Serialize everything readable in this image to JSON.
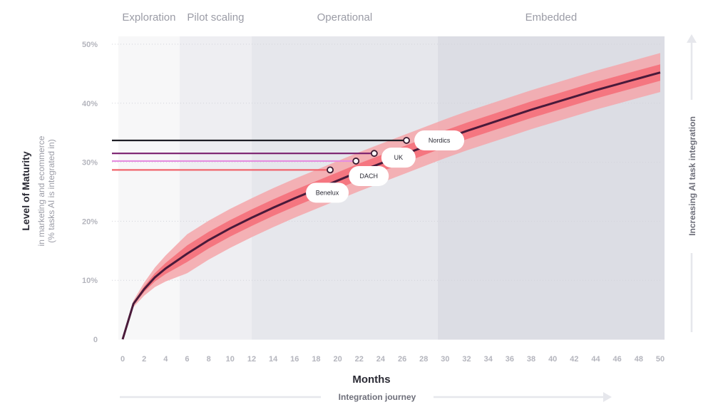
{
  "chart_data": {
    "type": "line",
    "xlabel": "Months",
    "ylabel": "Level of Maturity",
    "ylabel_sub": [
      "in marketing and ecommerce",
      "(% tasks AI is integrated in)"
    ],
    "right_label": "Increasing AI task integration",
    "bottom_label": "Integration journey",
    "xlim": [
      0,
      50
    ],
    "ylim": [
      0,
      50
    ],
    "x_ticks": [
      "0",
      "2",
      "4",
      "6",
      "8",
      "10",
      "12",
      "14",
      "16",
      "18",
      "20",
      "22",
      "24",
      "26",
      "28",
      "30",
      "32",
      "34",
      "36",
      "38",
      "40",
      "42",
      "44",
      "46",
      "48",
      "50"
    ],
    "y_ticks": [
      {
        "value": 0,
        "label": "0"
      },
      {
        "value": 10,
        "label": "10%"
      },
      {
        "value": 20,
        "label": "20%"
      },
      {
        "value": 30,
        "label": "30%"
      },
      {
        "value": 40,
        "label": "40%"
      },
      {
        "value": 50,
        "label": "50%"
      }
    ],
    "phases": [
      {
        "name": "Exploration",
        "start": -0.4,
        "end": 5.3,
        "color": "#f7f7f8"
      },
      {
        "name": "Pilot scaling",
        "start": 5.3,
        "end": 12,
        "color": "#eeeef2"
      },
      {
        "name": "Operational",
        "start": 12,
        "end": 29.3,
        "color": "#e6e7ec"
      },
      {
        "name": "Embedded",
        "start": 29.3,
        "end": 50.4,
        "color": "#dcdde4"
      }
    ],
    "series": [
      {
        "name": "Maturity curve",
        "color": "#4a1a3a",
        "x": [
          0,
          1,
          2,
          3,
          4,
          6,
          8,
          10,
          12,
          14,
          16,
          18,
          20,
          22,
          24,
          26,
          28,
          30,
          32,
          34,
          36,
          38,
          40,
          42,
          44,
          46,
          48,
          50
        ],
        "y": [
          0,
          6,
          8.5,
          10.5,
          12,
          14.5,
          16.8,
          18.8,
          20.6,
          22.3,
          23.9,
          25.4,
          26.9,
          28.4,
          29.8,
          31.2,
          32.6,
          34,
          35.3,
          36.5,
          37.7,
          38.9,
          40,
          41.1,
          42.2,
          43.2,
          44.2,
          45.2
        ]
      },
      {
        "name": "Inner band",
        "color": "#f5707a",
        "spread": 1.4
      },
      {
        "name": "Outer band",
        "color": "#f4a6aa",
        "spread": 3.3
      }
    ],
    "countries": [
      {
        "name": "Nordics",
        "x": 26.4,
        "y": 33.7,
        "line_color": "#1f1f26"
      },
      {
        "name": "UK",
        "x": 23.4,
        "y": 31.5,
        "line_color": "#7a1f6e"
      },
      {
        "name": "DACH",
        "x": 21.7,
        "y": 30.2,
        "line_color": "#e58ee0"
      },
      {
        "name": "Benelux",
        "x": 19.3,
        "y": 28.7,
        "line_color": "#f0666e"
      }
    ]
  }
}
